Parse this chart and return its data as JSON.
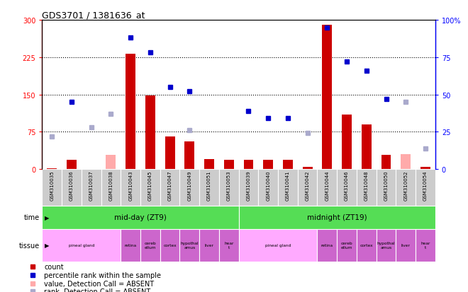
{
  "title": "GDS3701 / 1381636_at",
  "samples": [
    "GSM310035",
    "GSM310036",
    "GSM310037",
    "GSM310038",
    "GSM310043",
    "GSM310045",
    "GSM310047",
    "GSM310049",
    "GSM310051",
    "GSM310053",
    "GSM310039",
    "GSM310040",
    "GSM310041",
    "GSM310042",
    "GSM310044",
    "GSM310046",
    "GSM310048",
    "GSM310050",
    "GSM310052",
    "GSM310054"
  ],
  "count_present": [
    2,
    18,
    null,
    null,
    232,
    148,
    65,
    55,
    20,
    18,
    18,
    18,
    18,
    5,
    290,
    110,
    90,
    28,
    null,
    5
  ],
  "count_absent": [
    null,
    null,
    null,
    28,
    null,
    null,
    null,
    null,
    null,
    null,
    null,
    null,
    null,
    null,
    null,
    null,
    null,
    null,
    30,
    null
  ],
  "rank_present": [
    null,
    45,
    null,
    null,
    88,
    78,
    55,
    52,
    null,
    null,
    39,
    34,
    34,
    null,
    95,
    72,
    66,
    47,
    null,
    null
  ],
  "rank_absent": [
    22,
    null,
    28,
    37,
    null,
    null,
    null,
    26,
    null,
    null,
    null,
    null,
    null,
    24,
    null,
    null,
    null,
    null,
    45,
    14
  ],
  "ylim_left": [
    0,
    300
  ],
  "ylim_right": [
    0,
    100
  ],
  "yticks_left": [
    0,
    75,
    150,
    225,
    300
  ],
  "yticks_right": [
    0,
    25,
    50,
    75,
    100
  ],
  "ytick_labels_left": [
    "0",
    "75",
    "150",
    "225",
    "300"
  ],
  "ytick_labels_right": [
    "0",
    "25",
    "50",
    "75",
    "100%"
  ],
  "color_count_present": "#cc0000",
  "color_count_absent": "#ffaaaa",
  "color_rank_present": "#0000cc",
  "color_rank_absent": "#aaaacc",
  "bar_width": 0.5,
  "time_labels": [
    "mid-day (ZT9)",
    "midnight (ZT19)"
  ],
  "time_color": "#55dd55",
  "tissue_segments": [
    {
      "label": "pineal gland",
      "start": 0,
      "end": 4,
      "color": "#ffaaff"
    },
    {
      "label": "retina",
      "start": 4,
      "end": 5,
      "color": "#cc66cc"
    },
    {
      "label": "cereb\nellum",
      "start": 5,
      "end": 6,
      "color": "#cc66cc"
    },
    {
      "label": "cortex",
      "start": 6,
      "end": 7,
      "color": "#cc66cc"
    },
    {
      "label": "hypothal\namus",
      "start": 7,
      "end": 8,
      "color": "#cc66cc"
    },
    {
      "label": "liver",
      "start": 8,
      "end": 9,
      "color": "#cc66cc"
    },
    {
      "label": "hear\nt",
      "start": 9,
      "end": 10,
      "color": "#cc66cc"
    },
    {
      "label": "pineal gland",
      "start": 10,
      "end": 14,
      "color": "#ffaaff"
    },
    {
      "label": "retina",
      "start": 14,
      "end": 15,
      "color": "#cc66cc"
    },
    {
      "label": "cereb\nellum",
      "start": 15,
      "end": 16,
      "color": "#cc66cc"
    },
    {
      "label": "cortex",
      "start": 16,
      "end": 17,
      "color": "#cc66cc"
    },
    {
      "label": "hypothal\namus",
      "start": 17,
      "end": 18,
      "color": "#cc66cc"
    },
    {
      "label": "liver",
      "start": 18,
      "end": 19,
      "color": "#cc66cc"
    },
    {
      "label": "hear\nt",
      "start": 19,
      "end": 20,
      "color": "#cc66cc"
    }
  ],
  "legend_items": [
    {
      "color": "#cc0000",
      "label": "count"
    },
    {
      "color": "#0000cc",
      "label": "percentile rank within the sample"
    },
    {
      "color": "#ffaaaa",
      "label": "value, Detection Call = ABSENT"
    },
    {
      "color": "#aaaacc",
      "label": "rank, Detection Call = ABSENT"
    }
  ]
}
